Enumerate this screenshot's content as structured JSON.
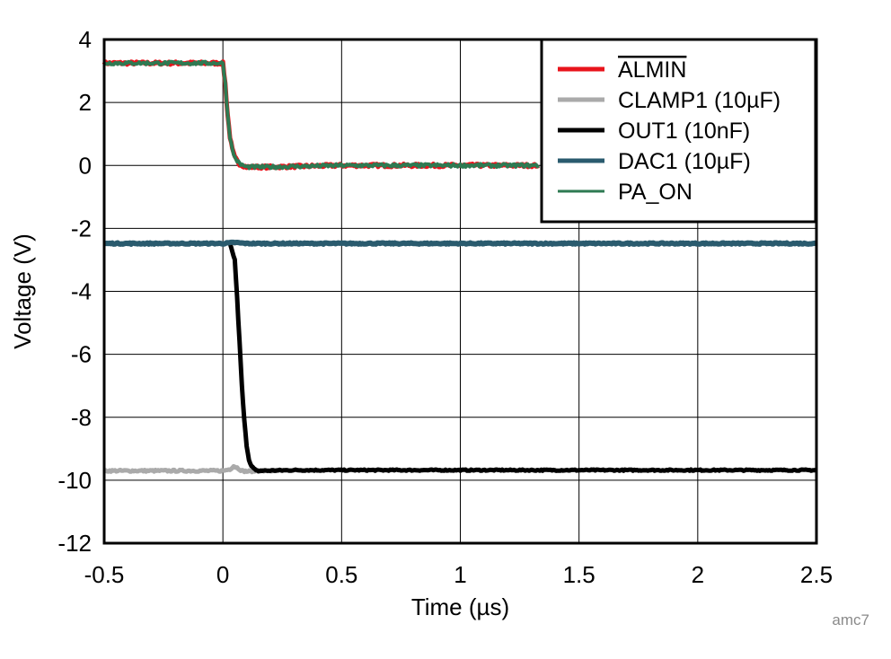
{
  "chart_data": {
    "type": "line",
    "title": "",
    "xlabel": "Time (µs)",
    "ylabel": "Voltage (V)",
    "xlim": [
      -0.5,
      2.5
    ],
    "ylim": [
      -12,
      4
    ],
    "xticks": [
      -0.5,
      0,
      0.5,
      1,
      1.5,
      2,
      2.5
    ],
    "xtick_labels": [
      "-0.5",
      "0",
      "0.5",
      "1",
      "1.5",
      "2",
      "2.5"
    ],
    "yticks": [
      -12,
      -10,
      -8,
      -6,
      -4,
      -2,
      0,
      2,
      4
    ],
    "ytick_labels": [
      "-12",
      "-10",
      "-8",
      "-6",
      "-4",
      "-2",
      "0",
      "2",
      "4"
    ],
    "grid": true,
    "legend_position": "top-right",
    "footnote": "amc7",
    "series": [
      {
        "name": "ALMIN",
        "overline": true,
        "color": "#e8141c",
        "x": [
          -0.5,
          0,
          0.01,
          0.02,
          0.03,
          0.04,
          0.05,
          0.07,
          0.1,
          0.2,
          0.5,
          1.0,
          1.33
        ],
        "y": [
          3.25,
          3.25,
          2.6,
          1.6,
          0.9,
          0.5,
          0.25,
          0.05,
          -0.05,
          -0.05,
          0.0,
          0.0,
          0.0
        ]
      },
      {
        "name": "CLAMP1 (10µF)",
        "color": "#aaaaaa",
        "x": [
          -0.5,
          0.0,
          0.03,
          0.045,
          0.06,
          0.08,
          0.1,
          0.15,
          0.25
        ],
        "y": [
          -9.7,
          -9.7,
          -9.65,
          -9.55,
          -9.6,
          -9.7,
          -9.72,
          -9.7,
          -9.7
        ]
      },
      {
        "name": "OUT1 (10nF)",
        "color": "#000000",
        "x": [
          0.03,
          0.05,
          0.06,
          0.07,
          0.08,
          0.09,
          0.1,
          0.11,
          0.12,
          0.14,
          0.16,
          0.3,
          1.0,
          2.0,
          2.5
        ],
        "y": [
          -2.5,
          -3.0,
          -4.2,
          -5.6,
          -7.0,
          -8.1,
          -8.9,
          -9.35,
          -9.55,
          -9.7,
          -9.7,
          -9.68,
          -9.68,
          -9.68,
          -9.68
        ]
      },
      {
        "name": "DAC1 (10µF)",
        "color": "#2a5b6e",
        "x": [
          -0.5,
          0.0,
          0.05,
          0.1,
          2.5
        ],
        "y": [
          -2.48,
          -2.48,
          -2.45,
          -2.48,
          -2.48
        ]
      },
      {
        "name": "PA_ON",
        "color": "#2e7a52",
        "x": [
          -0.5,
          0,
          0.01,
          0.02,
          0.03,
          0.04,
          0.05,
          0.07,
          0.1,
          0.2,
          0.5,
          1.0,
          1.33
        ],
        "y": [
          3.25,
          3.25,
          2.6,
          1.6,
          0.9,
          0.5,
          0.25,
          0.05,
          -0.05,
          -0.05,
          0.0,
          0.0,
          0.0
        ]
      }
    ]
  }
}
